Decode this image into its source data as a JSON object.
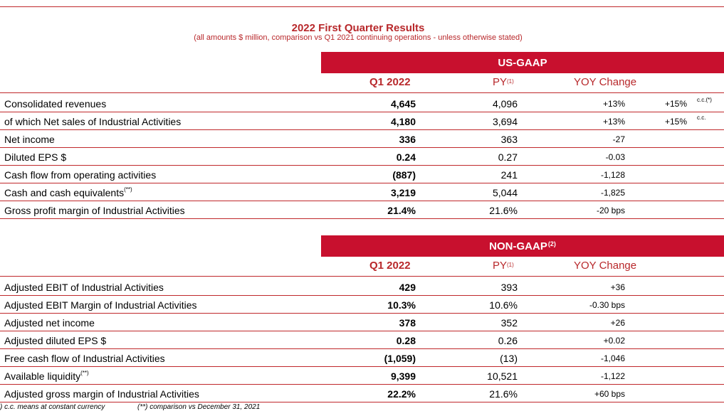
{
  "title": "2022 First Quarter Results",
  "subtitle": "(all amounts $ million, comparison vs Q1 2021 continuing operations - unless otherwise stated)",
  "colors": {
    "accent": "#c8102e",
    "title_red": "#b8282b",
    "text": "#000000"
  },
  "usgaap": {
    "banner": "US-GAAP",
    "headers": {
      "q1": "Q1 2022",
      "py": "PY",
      "py_note": "(1)",
      "yoy": "YOY Change"
    },
    "rows": [
      {
        "label": "Consolidated revenues",
        "note": "",
        "q1": "4,645",
        "py": "4,096",
        "yoy": "+13%",
        "cc": "+15%",
        "cc_note": "c.c.(*)"
      },
      {
        "label": "of which Net sales of Industrial Activities",
        "note": "",
        "q1": "4,180",
        "py": "3,694",
        "yoy": "+13%",
        "cc": "+15%",
        "cc_note": "c.c."
      },
      {
        "label": "Net income",
        "note": "",
        "q1": "336",
        "py": "363",
        "yoy": "-27",
        "cc": "",
        "cc_note": ""
      },
      {
        "label": "Diluted EPS $",
        "note": "",
        "q1": "0.24",
        "py": "0.27",
        "yoy": "-0.03",
        "cc": "",
        "cc_note": ""
      },
      {
        "label": "Cash flow from operating activities",
        "note": "",
        "q1": "(887)",
        "py": "241",
        "yoy": "-1,128",
        "cc": "",
        "cc_note": ""
      },
      {
        "label": "Cash and cash equivalents",
        "note": "(**)",
        "q1": "3,219",
        "py": "5,044",
        "yoy": "-1,825",
        "cc": "",
        "cc_note": ""
      },
      {
        "label": "Gross profit margin of Industrial Activities",
        "note": "",
        "q1": "21.4%",
        "py": "21.6%",
        "yoy": "-20 bps",
        "cc": "",
        "cc_note": ""
      }
    ]
  },
  "nongaap": {
    "banner": "NON-GAAP",
    "banner_note": "(2)",
    "headers": {
      "q1": "Q1 2022",
      "py": "PY",
      "py_note": "(1)",
      "yoy": "YOY Change"
    },
    "rows": [
      {
        "label": "Adjusted EBIT of Industrial Activities",
        "note": "",
        "q1": "429",
        "py": "393",
        "yoy": "+36"
      },
      {
        "label": "Adjusted EBIT Margin of Industrial Activities",
        "note": "",
        "q1": "10.3%",
        "py": "10.6%",
        "yoy": "-0.30 bps"
      },
      {
        "label": "Adjusted net income",
        "note": "",
        "q1": "378",
        "py": "352",
        "yoy": "+26"
      },
      {
        "label": "Adjusted diluted EPS $",
        "note": "",
        "q1": "0.28",
        "py": "0.26",
        "yoy": "+0.02"
      },
      {
        "label": "Free cash flow of Industrial Activities",
        "note": "",
        "q1": "(1,059)",
        "py": "(13)",
        "yoy": "-1,046"
      },
      {
        "label": "Available liquidity",
        "note": "(**)",
        "q1": "9,399",
        "py": "10,521",
        "yoy": "-1,122"
      },
      {
        "label": "Adjusted gross margin of Industrial Activities",
        "note": "",
        "q1": "22.2%",
        "py": "21.6%",
        "yoy": "+60 bps"
      }
    ]
  },
  "footnotes": {
    "cc": ") c.c. means at constant currency",
    "comparison": "(**) comparison vs December 31, 2021"
  }
}
